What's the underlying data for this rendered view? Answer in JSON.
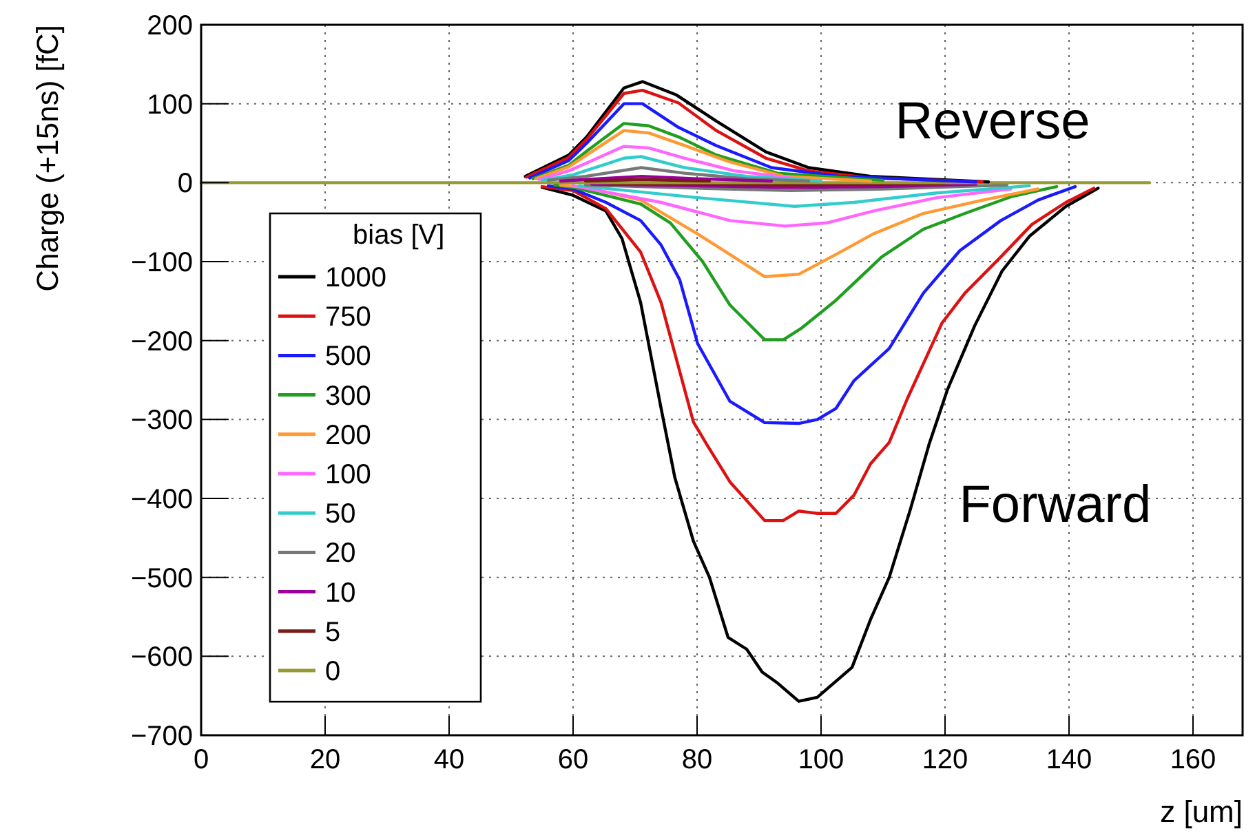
{
  "chart_data": {
    "type": "line",
    "ylabel": "Charge (+15ns) [fC]",
    "xlabel": "z [um]",
    "legend_title": "bias [V]",
    "legend": "left",
    "grid": true,
    "line_style": "solid",
    "xlim": [
      0,
      168
    ],
    "xticks": [
      0,
      20,
      40,
      60,
      80,
      100,
      120,
      140,
      160
    ],
    "ylim": [
      -700,
      200
    ],
    "yticks": [
      -700,
      -600,
      -500,
      -400,
      -300,
      -200,
      -100,
      0,
      100,
      200
    ],
    "annotations": [
      "Reverse",
      "Forward"
    ],
    "series": [
      {
        "name": "1000",
        "color": "#000000",
        "x": [
          55,
          60,
          65.3,
          67.9,
          70.9,
          74.2,
          76.4,
          79.4,
          82,
          85,
          88,
          90.5,
          93,
          96.4,
          99.4,
          105,
          108,
          111,
          114.4,
          117.4,
          120.4,
          124.8,
          129.2,
          133.6,
          139.5,
          144.7
        ],
        "values": [
          -6,
          -16,
          -36,
          -71,
          -152,
          -286,
          -373,
          -454,
          -500,
          -576,
          -591,
          -620,
          -634,
          -657,
          -652,
          -614,
          -553,
          -500,
          -414,
          -332,
          -262,
          -181,
          -112,
          -68,
          -30,
          -7
        ]
      },
      {
        "name": "750",
        "color": "#dd1111",
        "x": [
          55,
          60,
          65.3,
          70.9,
          74.2,
          79.4,
          81.6,
          85.3,
          90.9,
          93.9,
          96.4,
          99.4,
          102.4,
          105.3,
          108,
          111,
          113.9,
          119.5,
          123.2,
          129,
          134,
          139.5,
          144
        ],
        "values": [
          -5,
          -10,
          -33,
          -88,
          -152,
          -303,
          -332,
          -379,
          -428,
          -428,
          -416,
          -419,
          -419,
          -396,
          -356,
          -329,
          -274,
          -178,
          -140,
          -94,
          -53,
          -25,
          -7
        ]
      },
      {
        "name": "500",
        "color": "#1a1aff",
        "x": [
          56,
          60,
          65.3,
          70.9,
          74.2,
          77.2,
          80.1,
          85.3,
          90.9,
          96.4,
          99.4,
          102.4,
          105.3,
          111,
          116.5,
          122.4,
          129,
          135,
          141
        ],
        "values": [
          -4,
          -8,
          -25,
          -48,
          -79,
          -123,
          -204,
          -277,
          -304,
          -305,
          -300,
          -286,
          -251,
          -210,
          -140,
          -86,
          -48,
          -22,
          -5
        ]
      },
      {
        "name": "300",
        "color": "#1f9e1f",
        "x": [
          57,
          60,
          70.9,
          75.7,
          80.9,
          85.3,
          90.9,
          93.9,
          96.9,
          102.4,
          109.8,
          116.5,
          123.2,
          130.6,
          138
        ],
        "values": [
          -3,
          -6,
          -27,
          -51,
          -100,
          -155,
          -199,
          -199,
          -184,
          -149,
          -94,
          -59,
          -39,
          -18,
          -5
        ]
      },
      {
        "name": "200",
        "color": "#ff9933",
        "x": [
          58,
          62,
          70.9,
          80.1,
          85.3,
          90.9,
          96.4,
          102.4,
          108.4,
          116.5,
          126.1,
          135
        ],
        "values": [
          -3,
          -6,
          -22,
          -65,
          -91,
          -119,
          -116,
          -91,
          -65,
          -39,
          -22,
          -8
        ]
      },
      {
        "name": "100",
        "color": "#ff66ff",
        "x": [
          60,
          74.2,
          85.3,
          94.2,
          100.9,
          108.4,
          118.7,
          130.6
        ],
        "values": [
          -4,
          -25,
          -48,
          -55,
          -51,
          -36,
          -19,
          -8
        ]
      },
      {
        "name": "50",
        "color": "#33cccc",
        "x": [
          61,
          80.1,
          95.7,
          105.3,
          118.7,
          133.6
        ],
        "values": [
          -4,
          -19,
          -30,
          -25,
          -13,
          -4
        ]
      },
      {
        "name": "20",
        "color": "#777777",
        "x": [
          62,
          80,
          95,
          110,
          130
        ],
        "values": [
          -3,
          -7,
          -10,
          -8,
          -3
        ]
      },
      {
        "name": "10",
        "color": "#990099",
        "x": [
          63,
          80,
          95,
          110,
          125
        ],
        "values": [
          -2,
          -4,
          -6,
          -5,
          -2
        ]
      },
      {
        "name": "5",
        "color": "#7a1a1a",
        "x": [
          66,
          80,
          95,
          110,
          120
        ],
        "values": [
          -1,
          -2,
          -3,
          -2,
          -1
        ]
      },
      {
        "name": "0",
        "color": "#999933",
        "x": [
          0,
          153
        ],
        "values": [
          0,
          0
        ]
      },
      {
        "color": "#000000",
        "x": [
          52.3,
          59.3,
          62.2,
          68.2,
          71.2,
          76.7,
          83.1,
          91.1,
          98,
          108,
          127
        ],
        "values": [
          8,
          35,
          58,
          120,
          128,
          111,
          78,
          39,
          19,
          8,
          1
        ]
      },
      {
        "color": "#dd1111",
        "x": [
          52.5,
          59.3,
          62.2,
          68.2,
          71.2,
          77,
          83.1,
          91.1,
          98,
          108,
          126
        ],
        "values": [
          7,
          32,
          55,
          113,
          117,
          101,
          66,
          31,
          15,
          6,
          1
        ]
      },
      {
        "color": "#1a1aff",
        "x": [
          53,
          59.3,
          62.2,
          68.2,
          71.2,
          77,
          83.1,
          92,
          103,
          125
        ],
        "values": [
          6,
          28,
          50,
          100,
          100,
          70,
          47,
          19,
          8,
          1
        ]
      },
      {
        "color": "#1f9e1f",
        "x": [
          53.5,
          59.3,
          62.2,
          68.2,
          72.2,
          77,
          83.1,
          93,
          110
        ],
        "values": [
          5,
          22,
          40,
          75,
          72,
          58,
          35,
          12,
          3
        ]
      },
      {
        "color": "#ff9933",
        "x": [
          54,
          59.3,
          62.2,
          68.2,
          72.2,
          78,
          85,
          94,
          108
        ],
        "values": [
          5,
          20,
          35,
          66,
          63,
          47,
          27,
          8,
          2
        ]
      },
      {
        "color": "#ff66ff",
        "x": [
          54.5,
          59.3,
          62.2,
          68.2,
          72.2,
          78,
          86,
          96
        ],
        "values": [
          4,
          15,
          25,
          46,
          44,
          31,
          15,
          5
        ]
      },
      {
        "color": "#33cccc",
        "x": [
          55,
          60,
          68.2,
          71,
          78,
          88,
          100
        ],
        "values": [
          3,
          10,
          31,
          33,
          19,
          8,
          2
        ]
      },
      {
        "color": "#777777",
        "x": [
          56,
          62,
          71,
          78,
          88,
          98
        ],
        "values": [
          3,
          8,
          19,
          12,
          5,
          2
        ]
      },
      {
        "color": "#990099",
        "x": [
          58,
          62,
          71,
          80,
          92
        ],
        "values": [
          2,
          4,
          8,
          5,
          2
        ]
      },
      {
        "color": "#7a1a1a",
        "x": [
          62,
          71,
          82
        ],
        "values": [
          2,
          4,
          2
        ]
      }
    ]
  }
}
